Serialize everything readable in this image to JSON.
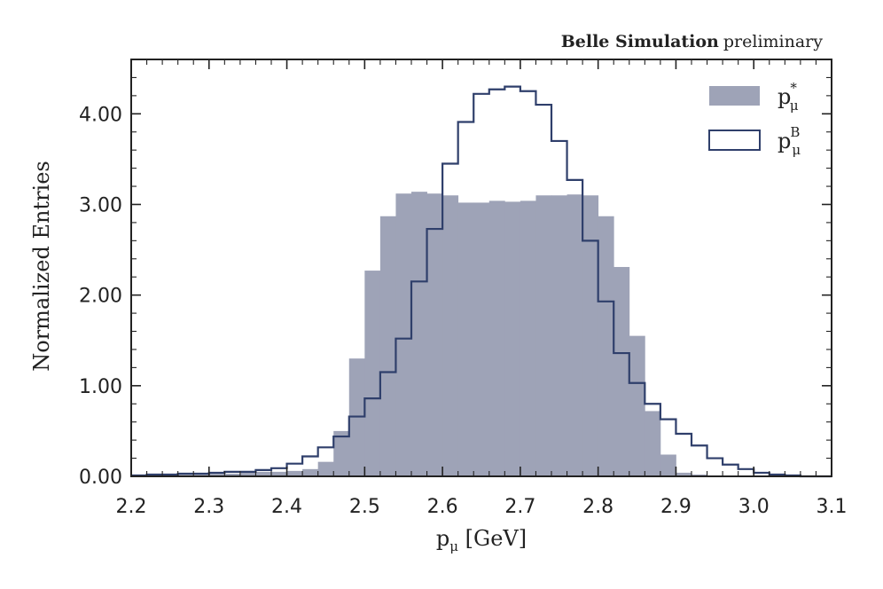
{
  "header": {
    "experiment": "Belle Simulation",
    "status": "preliminary"
  },
  "chart_data": {
    "type": "histogram",
    "title": "",
    "xlabel": {
      "main": "p",
      "sub": "μ",
      "unit": " [GeV]"
    },
    "ylabel": "Normalized Entries",
    "xlim": [
      2.2,
      3.1
    ],
    "ylim": [
      0.0,
      4.6
    ],
    "xticks": [
      "2.2",
      "2.3",
      "2.4",
      "2.5",
      "2.6",
      "2.7",
      "2.8",
      "2.9",
      "3.0",
      "3.1"
    ],
    "yticks": [
      "0.00",
      "1.00",
      "2.00",
      "3.00",
      "4.00"
    ],
    "bin_width": 0.02,
    "bin_edges_start": 2.2,
    "colors": {
      "filled": "#9ea3b7",
      "step": "#2f3f6b",
      "axis": "#222222"
    },
    "series": [
      {
        "name": "p_μ^*",
        "label_main": "p",
        "label_sub": "μ",
        "label_sup": "*",
        "style": "filled",
        "values": [
          0.01,
          0.01,
          0.02,
          0.02,
          0.02,
          0.03,
          0.03,
          0.04,
          0.05,
          0.05,
          0.06,
          0.08,
          0.16,
          0.5,
          1.3,
          2.27,
          2.87,
          3.12,
          3.14,
          3.12,
          3.1,
          3.02,
          3.02,
          3.04,
          3.03,
          3.04,
          3.1,
          3.1,
          3.11,
          3.1,
          2.87,
          2.31,
          1.55,
          0.72,
          0.24,
          0.04,
          0.02,
          0.01,
          0.0,
          0.0,
          0.0,
          0.0,
          0.0,
          0.0,
          0.0
        ]
      },
      {
        "name": "p_μ^B",
        "label_main": "p",
        "label_sub": "μ",
        "label_sup": "B",
        "style": "step",
        "values": [
          0.01,
          0.02,
          0.02,
          0.03,
          0.03,
          0.04,
          0.05,
          0.05,
          0.07,
          0.09,
          0.14,
          0.22,
          0.32,
          0.44,
          0.66,
          0.86,
          1.15,
          1.52,
          2.15,
          2.73,
          3.45,
          3.91,
          4.22,
          4.27,
          4.3,
          4.25,
          4.1,
          3.7,
          3.27,
          2.6,
          1.93,
          1.36,
          1.03,
          0.8,
          0.63,
          0.47,
          0.34,
          0.2,
          0.13,
          0.08,
          0.04,
          0.02,
          0.01,
          0.0,
          0.0
        ]
      }
    ]
  }
}
